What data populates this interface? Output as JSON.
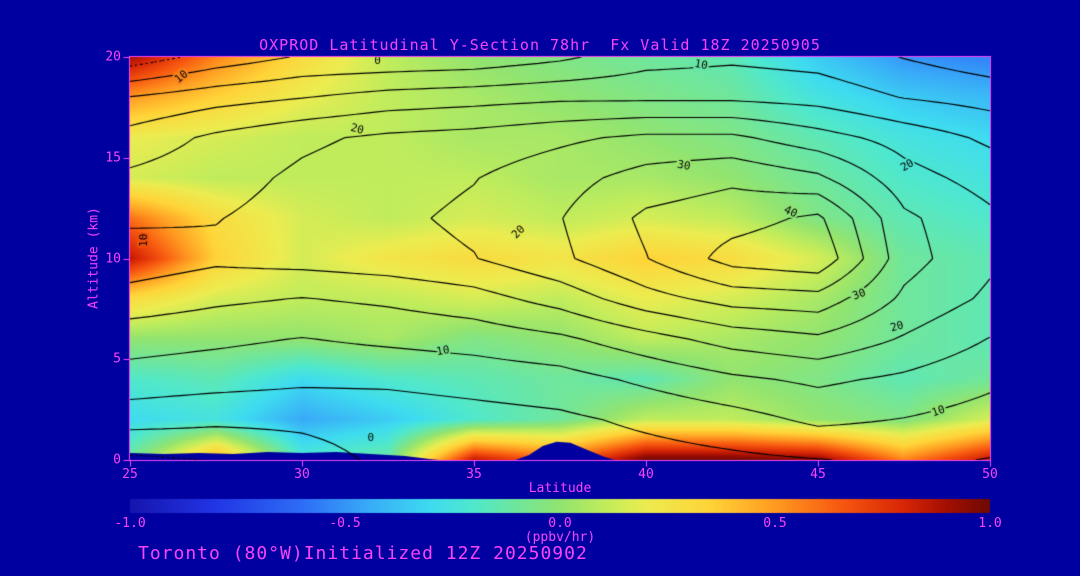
{
  "title": "OXPROD Latitudinal Y-Section 78hr  Fx Valid 18Z 20250905",
  "footer": "Toronto (80°W)Initialized 12Z 20250902",
  "colors": {
    "background": "#0000A0",
    "text": "#FA44FA",
    "contour_line": "#000000"
  },
  "axes": {
    "x": {
      "label": "Latitude",
      "min": 25,
      "max": 50,
      "tick_values": [
        25,
        30,
        35,
        40,
        45,
        50
      ],
      "tick_labels": [
        "25",
        "30",
        "35",
        "40",
        "45",
        "50"
      ]
    },
    "y": {
      "label": "Altitude (km)",
      "min": 0,
      "max": 20,
      "tick_values": [
        0,
        5,
        10,
        15,
        20
      ],
      "tick_labels": [
        "0",
        "5",
        "10",
        "15",
        "20"
      ]
    }
  },
  "colorbar": {
    "label": "(ppbv/hr)",
    "min": -1.0,
    "max": 1.0,
    "tick_values": [
      -1.0,
      -0.5,
      0.0,
      0.5,
      1.0
    ],
    "tick_labels": [
      "-1.0",
      "-0.5",
      "0.0",
      "0.5",
      "1.0"
    ]
  },
  "chart_data": {
    "type": "heatmap",
    "title": "OXPROD Latitudinal Y-Section 78hr  Fx Valid 18Z 20250905",
    "xlabel": "Latitude",
    "ylabel": "Altitude (km)",
    "fill_units": "ppbv/hr",
    "fill_range": [
      -1.0,
      1.0
    ],
    "lats": [
      25,
      27.5,
      30,
      32.5,
      35,
      37.5,
      40,
      42.5,
      45,
      47.5,
      50
    ],
    "alts": [
      0,
      2,
      4,
      6,
      8,
      10,
      12,
      14,
      16,
      18,
      20
    ],
    "fill_grid": [
      [
        -0.1,
        0.5,
        -0.2,
        -0.1,
        0.85,
        0.6,
        1.0,
        1.0,
        0.95,
        0.55,
        0.85
      ],
      [
        -0.3,
        -0.25,
        -0.45,
        -0.35,
        -0.2,
        -0.1,
        0.1,
        0.1,
        0.0,
        -0.05,
        0.15
      ],
      [
        -0.2,
        -0.15,
        -0.3,
        -0.2,
        -0.15,
        -0.1,
        -0.15,
        0.0,
        -0.05,
        -0.15,
        -0.1
      ],
      [
        0.0,
        0.0,
        0.0,
        0.05,
        -0.05,
        0.0,
        0.1,
        0.05,
        0.0,
        -0.1,
        -0.15
      ],
      [
        0.3,
        0.15,
        0.1,
        0.1,
        0.15,
        0.1,
        0.2,
        0.15,
        0.05,
        -0.1,
        -0.15
      ],
      [
        0.85,
        0.35,
        0.15,
        0.25,
        0.3,
        0.25,
        0.35,
        0.3,
        0.15,
        -0.1,
        -0.15
      ],
      [
        0.6,
        0.3,
        0.15,
        0.1,
        0.15,
        0.1,
        0.15,
        0.1,
        -0.05,
        -0.15,
        -0.2
      ],
      [
        0.15,
        0.1,
        0.1,
        0.1,
        0.1,
        0.05,
        0.05,
        0.0,
        -0.1,
        -0.2,
        -0.25
      ],
      [
        0.2,
        0.15,
        0.1,
        0.1,
        0.05,
        0.05,
        0.0,
        -0.05,
        -0.15,
        -0.25,
        -0.3
      ],
      [
        0.5,
        0.35,
        0.2,
        0.1,
        0.05,
        0.0,
        -0.05,
        -0.1,
        -0.25,
        -0.35,
        -0.4
      ],
      [
        0.9,
        0.55,
        0.3,
        0.1,
        0.0,
        -0.05,
        -0.1,
        -0.15,
        -0.35,
        -0.5,
        -0.55
      ]
    ],
    "contour_grid": [
      [
        -6,
        -4.8,
        -2,
        1,
        1,
        2,
        3,
        4,
        4.8,
        6,
        4.8
      ],
      [
        2,
        1,
        1,
        2,
        3,
        4,
        6,
        8,
        11,
        9.8,
        8
      ],
      [
        8,
        7,
        6,
        6,
        7,
        8,
        11,
        14,
        16,
        14,
        11
      ],
      [
        12,
        11,
        9.8,
        11,
        12,
        14,
        18,
        22,
        24,
        19.5,
        14.8
      ],
      [
        18,
        16,
        14.8,
        16,
        18,
        22,
        28,
        32,
        33,
        24,
        19
      ],
      [
        23,
        21,
        22,
        23,
        24.8,
        29,
        34.8,
        42,
        44,
        27,
        21
      ],
      [
        19,
        19.8,
        22,
        24,
        26,
        29.8,
        36,
        38,
        41,
        26,
        21
      ],
      [
        16,
        18,
        21,
        23,
        24.8,
        28,
        32,
        34,
        31,
        22,
        18
      ],
      [
        12,
        16,
        19,
        21,
        22,
        24,
        26,
        26,
        22,
        18,
        14
      ],
      [
        5.2,
        8,
        9.8,
        12,
        13,
        14,
        14,
        14,
        13,
        9.8,
        8
      ],
      [
        -8,
        -3,
        0.5,
        0.8,
        1.5,
        4,
        8,
        9,
        8,
        4.8,
        2
      ]
    ],
    "contour_levels": [
      -10,
      -5,
      0,
      5,
      10,
      15,
      20,
      25,
      30,
      35,
      40,
      45
    ],
    "labeled_levels": [
      0,
      10,
      20,
      30,
      40
    ],
    "negative_contours_dashed": true,
    "contour_labels": [
      {
        "text": "0",
        "lat": 32.2,
        "alt": 19.8,
        "rot": 0
      },
      {
        "text": "10",
        "lat": 26.5,
        "alt": 19.0,
        "rot": -40
      },
      {
        "text": "10",
        "lat": 41.6,
        "alt": 19.6,
        "rot": 10
      },
      {
        "text": "20",
        "lat": 31.6,
        "alt": 16.4,
        "rot": 15
      },
      {
        "text": "20",
        "lat": 36.3,
        "alt": 11.3,
        "rot": -45
      },
      {
        "text": "30",
        "lat": 41.1,
        "alt": 14.6,
        "rot": 10
      },
      {
        "text": "40",
        "lat": 44.2,
        "alt": 12.3,
        "rot": 25
      },
      {
        "text": "20",
        "lat": 47.6,
        "alt": 14.6,
        "rot": -30
      },
      {
        "text": "30",
        "lat": 46.2,
        "alt": 8.2,
        "rot": -20
      },
      {
        "text": "20",
        "lat": 47.3,
        "alt": 6.6,
        "rot": -15
      },
      {
        "text": "10",
        "lat": 34.1,
        "alt": 5.4,
        "rot": -10
      },
      {
        "text": "10",
        "lat": 48.5,
        "alt": 2.4,
        "rot": -20
      },
      {
        "text": "10",
        "lat": 25.4,
        "alt": 10.9,
        "rot": -90
      },
      {
        "text": "0",
        "lat": 32.0,
        "alt": 1.1,
        "rot": 0
      }
    ],
    "colormap": [
      [
        -1.0,
        "#1616AE"
      ],
      [
        -0.8,
        "#2236E6"
      ],
      [
        -0.6,
        "#2E6EF6"
      ],
      [
        -0.45,
        "#38AAF8"
      ],
      [
        -0.3,
        "#3EDCF0"
      ],
      [
        -0.2,
        "#50E8CC"
      ],
      [
        -0.1,
        "#70E69C"
      ],
      [
        0.0,
        "#92E470"
      ],
      [
        0.1,
        "#C0EC5C"
      ],
      [
        0.2,
        "#ECEC50"
      ],
      [
        0.35,
        "#FFD438"
      ],
      [
        0.5,
        "#FF9C22"
      ],
      [
        0.65,
        "#F85A10"
      ],
      [
        0.8,
        "#D82606"
      ],
      [
        0.9,
        "#A50F03"
      ],
      [
        1.0,
        "#6E0A02"
      ]
    ],
    "terrain_mask": [
      [
        25,
        0.35
      ],
      [
        26,
        0.3
      ],
      [
        27,
        0.35
      ],
      [
        28,
        0.3
      ],
      [
        29,
        0.4
      ],
      [
        30,
        0.35
      ],
      [
        31,
        0.4
      ],
      [
        32,
        0.3
      ],
      [
        33,
        0.2
      ],
      [
        33.7,
        0.05
      ],
      [
        34,
        0
      ],
      [
        36.2,
        0
      ],
      [
        36.6,
        0.25
      ],
      [
        37,
        0.7
      ],
      [
        37.4,
        0.9
      ],
      [
        37.8,
        0.85
      ],
      [
        38.3,
        0.5
      ],
      [
        38.8,
        0.15
      ],
      [
        39.1,
        0
      ],
      [
        50,
        0
      ]
    ]
  }
}
